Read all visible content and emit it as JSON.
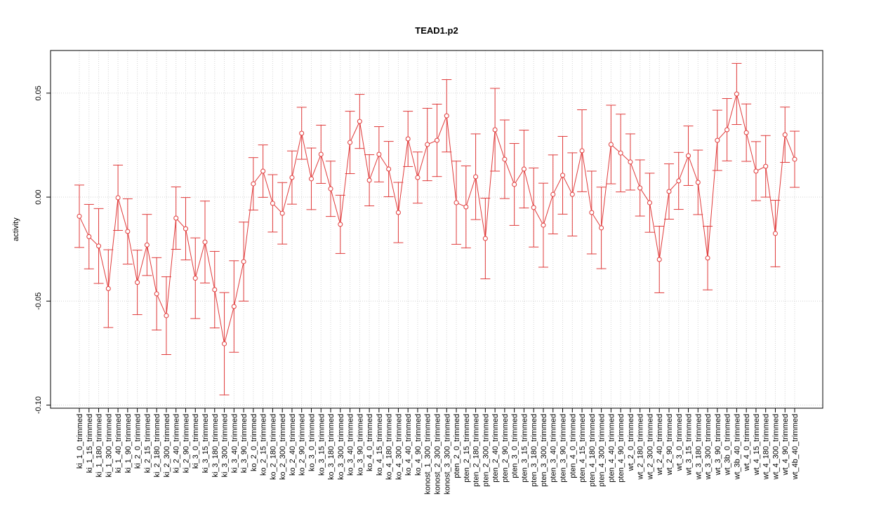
{
  "chart_data": {
    "type": "errorbar_line",
    "title": "TEAD1.p2",
    "y_label": "activity",
    "color": "#e03a3a",
    "grid": true,
    "ylim": [
      -0.1015,
      0.0705
    ],
    "yticks": [
      {
        "value": -0.1,
        "label": "-0.10"
      },
      {
        "value": -0.05,
        "label": "-0.05"
      },
      {
        "value": 0,
        "label": "0.00"
      },
      {
        "value": 0.05,
        "label": "0.05"
      }
    ],
    "categories": [
      "ki_1_0_trimmed",
      "ki_1_15_trimmed",
      "ki_1_180_trimmed",
      "ki_1_300_trimmed",
      "ki_1_40_trimmed",
      "ki_1_90_trimmed",
      "ki_2_0_trimmed",
      "ki_2_15_trimmed",
      "ki_2_180_trimmed",
      "ki_2_300_trimmed",
      "ki_2_40_trimmed",
      "ki_2_90_trimmed",
      "ki_3_0_trimmed",
      "ki_3_15_trimmed",
      "ki_3_180_trimmed",
      "ki_3_300_trimmed",
      "ki_3_40_trimmed",
      "ki_3_90_trimmed",
      "ko_2_0_trimmed",
      "ko_2_15_trimmed",
      "ko_2_180_trimmed",
      "ko_2_300_trimmed",
      "ko_2_40_trimmed",
      "ko_2_90_trimmed",
      "ko_3_0_trimmed",
      "ko_3_15_trimmed",
      "ko_3_180_trimmed",
      "ko_3_300_trimmed",
      "ko_3_40_trimmed",
      "ko_3_90_trimmed",
      "ko_4_0_trimmed",
      "ko_4_15_trimmed",
      "ko_4_180_trimmed",
      "ko_4_300_trimmed",
      "ko_4_40_trimmed",
      "ko_4_90_trimmed",
      "konost_1_300_trimmed",
      "konost_2_300_trimmed",
      "konost_3_300_trimmed",
      "pten_2_0_trimmed",
      "pten_2_15_trimmed",
      "pten_2_180_trimmed",
      "pten_2_300_trimmed",
      "pten_2_40_trimmed",
      "pten_2_90_trimmed",
      "pten_3_0_trimmed",
      "pten_3_15_trimmed",
      "pten_3_180_trimmed",
      "pten_3_300_trimmed",
      "pten_3_40_trimmed",
      "pten_3_90_trimmed",
      "pten_4_0_trimmed",
      "pten_4_15_trimmed",
      "pten_4_180_trimmed",
      "pten_4_300_trimmed",
      "pten_4_40_trimmed",
      "pten_4_90_trimmed",
      "wt_2_0_trimmed",
      "wt_2_180_trimmed",
      "wt_2_300_trimmed",
      "wt_2_40_trimmed",
      "wt_2_90_trimmed",
      "wt_3_0_trimmed",
      "wt_3_15_trimmed",
      "wt_3_180_trimmed",
      "wt_3_300_trimmed",
      "wt_3_90_trimmed",
      "wt_3b_0_trimmed",
      "wt_3b_40_trimmed",
      "wt_4_0_trimmed",
      "wt_4_15_trimmed",
      "wt_4_180_trimmed",
      "wt_4_300_trimmed",
      "wt_4_90_trimmed",
      "wt_4b_40_trimmed"
    ],
    "values": [
      -0.0092,
      -0.019,
      -0.0235,
      -0.044,
      -0.0003,
      -0.0165,
      -0.041,
      -0.023,
      -0.0465,
      -0.057,
      -0.0101,
      -0.0152,
      -0.039,
      -0.0216,
      -0.0445,
      -0.0705,
      -0.0526,
      -0.031,
      0.0064,
      0.0125,
      -0.003,
      -0.0078,
      0.0094,
      0.0307,
      0.0088,
      0.0206,
      0.004,
      -0.0131,
      0.0263,
      0.0364,
      0.0081,
      0.0206,
      0.0135,
      -0.0074,
      0.028,
      0.0094,
      0.0253,
      0.0273,
      0.0391,
      -0.0027,
      -0.0047,
      0.0098,
      -0.0199,
      0.0324,
      0.0182,
      0.0061,
      0.0135,
      -0.005,
      -0.0135,
      0.0013,
      0.0105,
      0.0013,
      0.0223,
      -0.0074,
      -0.0148,
      0.0253,
      0.0212,
      0.0169,
      0.0044,
      -0.0027,
      -0.03,
      0.0027,
      0.0078,
      0.0199,
      0.0071,
      -0.0293,
      0.0273,
      0.0324,
      0.0496,
      0.031,
      0.0125,
      0.0148,
      -0.0175,
      0.03,
      0.0182
    ],
    "errors": [
      0.015,
      0.0155,
      0.018,
      0.0187,
      0.0157,
      0.0157,
      0.0155,
      0.0147,
      0.0174,
      0.0187,
      0.015,
      0.015,
      0.0194,
      0.0197,
      0.0184,
      0.0246,
      0.022,
      0.019,
      0.0126,
      0.0126,
      0.0138,
      0.0148,
      0.0128,
      0.0125,
      0.0148,
      0.014,
      0.0133,
      0.014,
      0.015,
      0.013,
      0.0123,
      0.0133,
      0.0133,
      0.0145,
      0.0133,
      0.0123,
      0.0174,
      0.0174,
      0.0174,
      0.02,
      0.0197,
      0.0206,
      0.0194,
      0.0199,
      0.0189,
      0.0197,
      0.0187,
      0.019,
      0.0202,
      0.019,
      0.0187,
      0.02,
      0.0197,
      0.0199,
      0.0196,
      0.0189,
      0.0187,
      0.0135,
      0.0135,
      0.0142,
      0.016,
      0.0133,
      0.0137,
      0.0143,
      0.0155,
      0.0153,
      0.0145,
      0.015,
      0.0147,
      0.0138,
      0.0142,
      0.0148,
      0.016,
      0.0133,
      0.0135
    ]
  }
}
